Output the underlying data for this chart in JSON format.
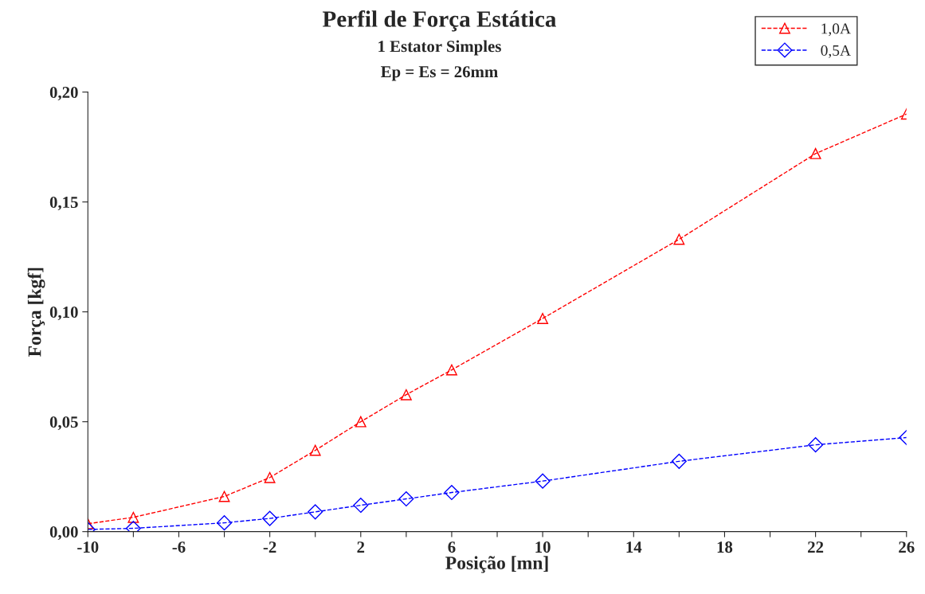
{
  "chart_data": {
    "type": "line",
    "title": "Perfil de Força Estática",
    "subtitle": "1 Estator Simples\nEp = Es = 26mm",
    "xlabel": "Posição [mn]",
    "ylabel": "Força [kgf]",
    "x": [
      -10,
      -8,
      -4,
      -2,
      0,
      2,
      4,
      6,
      10,
      16,
      22,
      26
    ],
    "series": [
      {
        "name": "1,0A",
        "color": "#ff0000",
        "marker": "triangle",
        "values": [
          0.0036,
          0.0065,
          0.016,
          0.0246,
          0.037,
          0.05,
          0.0623,
          0.0736,
          0.097,
          0.133,
          0.172,
          0.19
        ]
      },
      {
        "name": "0,5A",
        "color": "#0000ff",
        "marker": "diamond",
        "values": [
          0.001,
          0.0015,
          0.004,
          0.006,
          0.009,
          0.012,
          0.0149,
          0.0178,
          0.023,
          0.032,
          0.0395,
          0.0428
        ]
      }
    ],
    "line_style": "dashed",
    "legend": "top right",
    "grid": false,
    "xlim": [
      -10,
      26
    ],
    "ylim": [
      0,
      0.2
    ],
    "xticks": [
      -10,
      {
        "value": -8,
        "label": null
      },
      -6,
      {
        "value": -4,
        "label": null
      },
      -2,
      {
        "value": 0,
        "label": null
      },
      2,
      {
        "value": 4,
        "label": null
      },
      6,
      {
        "value": 8,
        "label": null
      },
      10,
      {
        "value": 12,
        "label": null
      },
      14,
      {
        "value": 16,
        "label": null
      },
      18,
      {
        "value": 20,
        "label": null
      },
      22,
      {
        "value": 24,
        "label": null
      },
      26
    ],
    "yticks": [
      {
        "value": 0,
        "label": "0,00"
      },
      {
        "value": 0.05,
        "label": "0,05"
      },
      {
        "value": 0.1,
        "label": "0,10"
      },
      {
        "value": 0.15,
        "label": "0,15"
      },
      {
        "value": 0.2,
        "label": "0,20"
      }
    ]
  }
}
